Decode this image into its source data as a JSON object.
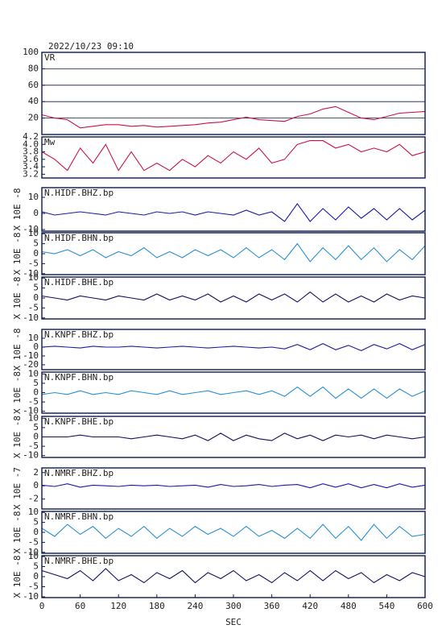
{
  "chart_data": [
    {
      "type": "line",
      "title": "2022/10/23 09:10",
      "xlim": [
        0,
        600
      ],
      "ylim": [
        0,
        100
      ],
      "yticks": [
        20,
        40,
        60,
        80,
        100
      ],
      "grid": true,
      "x": [
        0,
        20,
        40,
        60,
        80,
        100,
        120,
        140,
        160,
        180,
        200,
        220,
        240,
        260,
        280,
        300,
        320,
        340,
        360,
        380,
        400,
        420,
        440,
        460,
        480,
        500,
        520,
        540,
        560,
        580,
        600
      ],
      "series": [
        {
          "name": "VR",
          "color": "#cc1144",
          "values": [
            24,
            20,
            18,
            8,
            10,
            12,
            12,
            10,
            11,
            9,
            10,
            11,
            12,
            14,
            15,
            18,
            21,
            18,
            17,
            16,
            22,
            25,
            31,
            34,
            27,
            20,
            18,
            22,
            26,
            27,
            28
          ]
        }
      ]
    },
    {
      "type": "line",
      "xlim": [
        0,
        600
      ],
      "ylim": [
        3.1,
        4.2
      ],
      "yticks": [
        3.2,
        3.4,
        3.6,
        3.8,
        {
          "value": 4,
          "label": "4.0"
        },
        4.2
      ],
      "x": [
        0,
        20,
        40,
        60,
        80,
        100,
        120,
        140,
        160,
        180,
        200,
        220,
        240,
        260,
        280,
        300,
        320,
        340,
        360,
        380,
        400,
        420,
        440,
        460,
        480,
        500,
        520,
        540,
        560,
        580,
        600
      ],
      "series": [
        {
          "name": "Mw",
          "color": "#cc1144",
          "values": [
            3.8,
            3.6,
            3.3,
            3.9,
            3.5,
            4.0,
            3.3,
            3.8,
            3.3,
            3.5,
            3.3,
            3.6,
            3.4,
            3.7,
            3.5,
            3.8,
            3.6,
            3.9,
            3.5,
            3.6,
            4.0,
            4.1,
            4.1,
            3.9,
            4.0,
            3.8,
            3.9,
            3.8,
            4.0,
            3.7,
            3.8
          ]
        }
      ]
    },
    {
      "type": "line",
      "ylabel": "X 10E -8",
      "xlim": [
        0,
        600
      ],
      "ylim": [
        -11,
        16
      ],
      "yticks": [
        -10,
        0,
        10
      ],
      "x": [
        0,
        20,
        40,
        60,
        80,
        100,
        120,
        140,
        160,
        180,
        200,
        220,
        240,
        260,
        280,
        300,
        320,
        340,
        360,
        380,
        400,
        420,
        440,
        460,
        480,
        500,
        520,
        540,
        560,
        580,
        600
      ],
      "series": [
        {
          "name": "N.HIDF.BHZ.bp",
          "color": "#1a1aa0",
          "values": [
            1,
            -1,
            0,
            1,
            0,
            -1,
            1,
            0,
            -1,
            1,
            0,
            1,
            -1,
            1,
            0,
            -1,
            2,
            -1,
            1,
            -5,
            6,
            -5,
            3,
            -4,
            4,
            -3,
            3,
            -4,
            3,
            -4,
            2
          ]
        }
      ]
    },
    {
      "type": "line",
      "ylabel": "X 10E -8",
      "xlim": [
        0,
        600
      ],
      "ylim": [
        -10.5,
        10.5
      ],
      "yticks": [
        -10,
        -5,
        0,
        5,
        10
      ],
      "x": [
        0,
        20,
        40,
        60,
        80,
        100,
        120,
        140,
        160,
        180,
        200,
        220,
        240,
        260,
        280,
        300,
        320,
        340,
        360,
        380,
        400,
        420,
        440,
        460,
        480,
        500,
        520,
        540,
        560,
        580,
        600
      ],
      "series": [
        {
          "name": "N.HIDF.BHN.bp",
          "color": "#2a8fd0",
          "values": [
            1,
            0,
            2,
            -1,
            2,
            -2,
            1,
            -1,
            3,
            -2,
            1,
            -2,
            2,
            -1,
            2,
            -2,
            3,
            -2,
            2,
            -3,
            5,
            -4,
            3,
            -3,
            4,
            -3,
            3,
            -4,
            2,
            -3,
            4
          ]
        }
      ]
    },
    {
      "type": "line",
      "ylabel": "X 10E -8",
      "xlim": [
        0,
        600
      ],
      "ylim": [
        -10.5,
        10.5
      ],
      "yticks": [
        -10,
        -5,
        0,
        5,
        10
      ],
      "x": [
        0,
        20,
        40,
        60,
        80,
        100,
        120,
        140,
        160,
        180,
        200,
        220,
        240,
        260,
        280,
        300,
        320,
        340,
        360,
        380,
        400,
        420,
        440,
        460,
        480,
        500,
        520,
        540,
        560,
        580,
        600
      ],
      "series": [
        {
          "name": "N.HIDF.BHE.bp",
          "color": "#101060",
          "values": [
            1,
            0,
            -1,
            1,
            0,
            -1,
            1,
            0,
            -1,
            2,
            -1,
            1,
            -1,
            2,
            -2,
            1,
            -2,
            2,
            -1,
            2,
            -2,
            3,
            -2,
            2,
            -2,
            1,
            -2,
            2,
            -1,
            1,
            0
          ]
        }
      ]
    },
    {
      "type": "line",
      "ylabel": "X 10E -8",
      "xlim": [
        0,
        600
      ],
      "ylim": [
        -25.5,
        20
      ],
      "yticks": [
        -20,
        -10,
        0,
        10
      ],
      "x": [
        0,
        20,
        40,
        60,
        80,
        100,
        120,
        140,
        160,
        180,
        200,
        220,
        240,
        260,
        280,
        300,
        320,
        340,
        360,
        380,
        400,
        420,
        440,
        460,
        480,
        500,
        520,
        540,
        560,
        580,
        600
      ],
      "series": [
        {
          "name": "N.KNPF.BHZ.bp",
          "color": "#1a1aa0",
          "values": [
            0,
            1,
            0,
            -1,
            1,
            0,
            0,
            1,
            0,
            -1,
            0,
            1,
            0,
            -1,
            0,
            1,
            0,
            -1,
            0,
            -2,
            3,
            -3,
            4,
            -3,
            2,
            -4,
            3,
            -2,
            4,
            -3,
            3
          ]
        }
      ]
    },
    {
      "type": "line",
      "ylabel": "X 10E -8",
      "xlim": [
        0,
        600
      ],
      "ylim": [
        -11,
        11
      ],
      "yticks": [
        -10,
        -5,
        0,
        5,
        10
      ],
      "x": [
        0,
        20,
        40,
        60,
        80,
        100,
        120,
        140,
        160,
        180,
        200,
        220,
        240,
        260,
        280,
        300,
        320,
        340,
        360,
        380,
        400,
        420,
        440,
        460,
        480,
        500,
        520,
        540,
        560,
        580,
        600
      ],
      "series": [
        {
          "name": "N.KNPF.BHN.bp",
          "color": "#2a8fd0",
          "values": [
            -1,
            0,
            -1,
            1,
            -1,
            0,
            -1,
            1,
            0,
            -1,
            1,
            -1,
            0,
            1,
            -1,
            0,
            1,
            -1,
            1,
            -2,
            3,
            -2,
            3,
            -3,
            2,
            -3,
            2,
            -3,
            2,
            -2,
            1
          ]
        }
      ]
    },
    {
      "type": "line",
      "ylabel": "X 10E -8",
      "xlim": [
        0,
        600
      ],
      "ylim": [
        -11,
        11
      ],
      "yticks": [
        -10,
        -5,
        0,
        5,
        10
      ],
      "x": [
        0,
        20,
        40,
        60,
        80,
        100,
        120,
        140,
        160,
        180,
        200,
        220,
        240,
        260,
        280,
        300,
        320,
        340,
        360,
        380,
        400,
        420,
        440,
        460,
        480,
        500,
        520,
        540,
        560,
        580,
        600
      ],
      "series": [
        {
          "name": "N.KNPF.BHE.bp",
          "color": "#101060",
          "values": [
            0,
            0,
            0,
            1,
            0,
            0,
            0,
            -1,
            0,
            1,
            0,
            -1,
            1,
            -2,
            2,
            -2,
            1,
            -1,
            -2,
            2,
            -1,
            1,
            -2,
            1,
            0,
            1,
            -1,
            1,
            0,
            -1,
            0
          ]
        }
      ]
    },
    {
      "type": "line",
      "ylabel": "X 10E -7",
      "xlim": [
        0,
        600
      ],
      "ylim": [
        -3.5,
        2.7
      ],
      "yticks": [
        -2,
        0,
        2
      ],
      "x": [
        0,
        20,
        40,
        60,
        80,
        100,
        120,
        140,
        160,
        180,
        200,
        220,
        240,
        260,
        280,
        300,
        320,
        340,
        360,
        380,
        400,
        420,
        440,
        460,
        480,
        500,
        520,
        540,
        560,
        580,
        600
      ],
      "series": [
        {
          "name": "N.NMRF.BHZ.bp",
          "color": "#1a1aa0",
          "values": [
            0.1,
            -0.1,
            0.3,
            -0.2,
            0.1,
            0,
            -0.1,
            0.1,
            0,
            0.1,
            -0.1,
            0,
            0.1,
            -0.2,
            0.2,
            -0.1,
            0,
            0.2,
            -0.1,
            0.1,
            0.2,
            -0.3,
            0.3,
            -0.2,
            0.3,
            -0.3,
            0.2,
            -0.3,
            0.3,
            -0.2,
            0.1
          ]
        }
      ]
    },
    {
      "type": "line",
      "ylabel": "X 10E -8",
      "xlim": [
        0,
        600
      ],
      "ylim": [
        -10.5,
        10.5
      ],
      "yticks": [
        -10,
        -5,
        0,
        5,
        10
      ],
      "x": [
        0,
        20,
        40,
        60,
        80,
        100,
        120,
        140,
        160,
        180,
        200,
        220,
        240,
        260,
        280,
        300,
        320,
        340,
        360,
        380,
        400,
        420,
        440,
        460,
        480,
        500,
        520,
        540,
        560,
        580,
        600
      ],
      "series": [
        {
          "name": "N.NMRF.BHN.bp",
          "color": "#2a8fd0",
          "values": [
            2,
            -2,
            4,
            -1,
            3,
            -3,
            2,
            -2,
            3,
            -3,
            2,
            -2,
            3,
            -1,
            2,
            -2,
            3,
            -2,
            1,
            -3,
            2,
            -3,
            4,
            -3,
            3,
            -4,
            4,
            -3,
            3,
            -2,
            -1
          ]
        }
      ]
    },
    {
      "type": "line",
      "ylabel": "X 10E -8",
      "xlabel": "SEC",
      "xlim": [
        0,
        600
      ],
      "ylim": [
        -10.4,
        10.4
      ],
      "yticks": [
        -10,
        -5,
        0,
        5,
        10
      ],
      "xticks": [
        0,
        60,
        120,
        180,
        240,
        300,
        360,
        420,
        480,
        540,
        600
      ],
      "x": [
        0,
        20,
        40,
        60,
        80,
        100,
        120,
        140,
        160,
        180,
        200,
        220,
        240,
        260,
        280,
        300,
        320,
        340,
        360,
        380,
        400,
        420,
        440,
        460,
        480,
        500,
        520,
        540,
        560,
        580,
        600
      ],
      "series": [
        {
          "name": "N.NMRF.BHE.bp",
          "color": "#101060",
          "values": [
            3,
            1,
            -1,
            3,
            -2,
            4,
            -2,
            1,
            -3,
            2,
            -1,
            3,
            -3,
            2,
            -1,
            3,
            -2,
            1,
            -3,
            2,
            -2,
            3,
            -2,
            3,
            -1,
            2,
            -3,
            1,
            -2,
            2,
            0
          ]
        }
      ]
    }
  ]
}
